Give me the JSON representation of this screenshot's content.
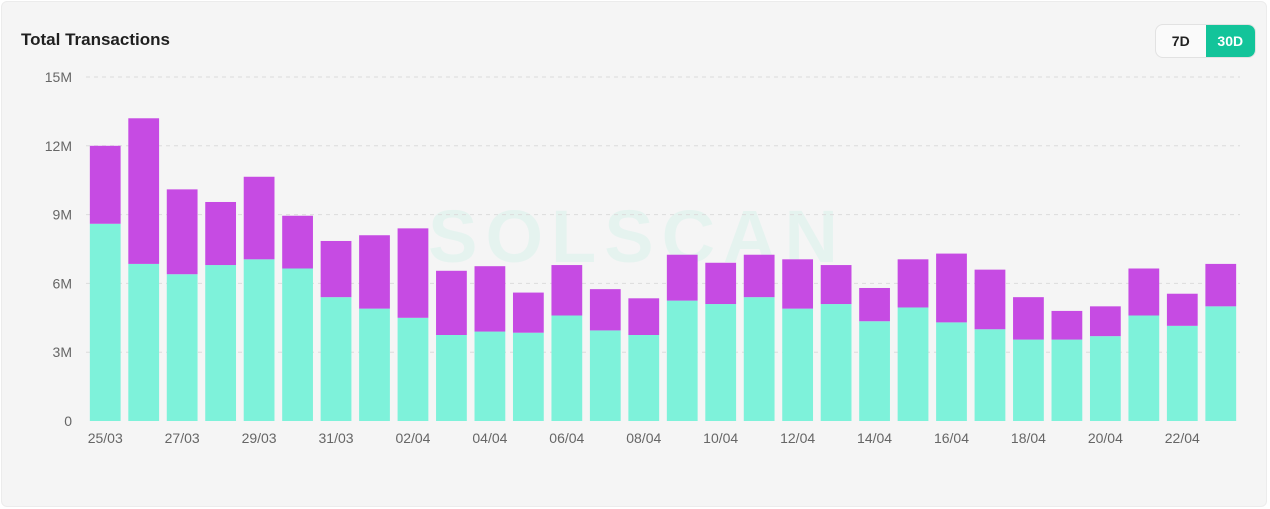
{
  "card": {
    "title": "Total Transactions",
    "watermark": "SOLSCAN"
  },
  "range_toggle": {
    "options": [
      {
        "label": "7D",
        "active": false
      },
      {
        "label": "30D",
        "active": true
      }
    ]
  },
  "colors": {
    "bottom_segment": "#7ef2da",
    "top_segment": "#c64be3",
    "accent": "#13c49a",
    "grid": "#dcdcdc"
  },
  "chart_data": {
    "type": "bar",
    "stacked": true,
    "title": "Total Transactions",
    "xlabel": "",
    "ylabel": "",
    "ylim": [
      0,
      15000000
    ],
    "y_ticks": [
      {
        "value": 0,
        "label": "0"
      },
      {
        "value": 3000000,
        "label": "3M"
      },
      {
        "value": 6000000,
        "label": "6M"
      },
      {
        "value": 9000000,
        "label": "9M"
      },
      {
        "value": 12000000,
        "label": "12M"
      },
      {
        "value": 15000000,
        "label": "15M"
      }
    ],
    "grid": true,
    "categories": [
      "25/03",
      "26/03",
      "27/03",
      "28/03",
      "29/03",
      "30/03",
      "31/03",
      "01/04",
      "02/04",
      "03/04",
      "04/04",
      "05/04",
      "06/04",
      "07/04",
      "08/04",
      "09/04",
      "10/04",
      "11/04",
      "12/04",
      "13/04",
      "14/04",
      "15/04",
      "16/04",
      "17/04",
      "18/04",
      "19/04",
      "20/04",
      "21/04",
      "22/04",
      "23/04"
    ],
    "x_tick_labels": [
      "25/03",
      "27/03",
      "29/03",
      "31/03",
      "02/04",
      "04/04",
      "06/04",
      "08/04",
      "10/04",
      "12/04",
      "14/04",
      "16/04",
      "18/04",
      "20/04",
      "22/04"
    ],
    "series": [
      {
        "values": [
          8600000,
          6850000,
          6400000,
          6800000,
          7050000,
          6650000,
          5400000,
          4900000,
          4500000,
          3750000,
          3900000,
          3850000,
          4600000,
          3950000,
          3750000,
          5250000,
          5100000,
          5400000,
          4900000,
          5100000,
          4350000,
          4950000,
          4300000,
          4000000,
          3550000,
          3550000,
          3700000,
          4600000,
          4150000,
          5000000
        ]
      },
      {
        "values": [
          3400000,
          6350000,
          3700000,
          2750000,
          3600000,
          2300000,
          2450000,
          3200000,
          3900000,
          2800000,
          2850000,
          1750000,
          2200000,
          1800000,
          1600000,
          2000000,
          1800000,
          1850000,
          2150000,
          1700000,
          1450000,
          2100000,
          3000000,
          2600000,
          1850000,
          1250000,
          1300000,
          2050000,
          1400000,
          1850000
        ]
      }
    ]
  }
}
